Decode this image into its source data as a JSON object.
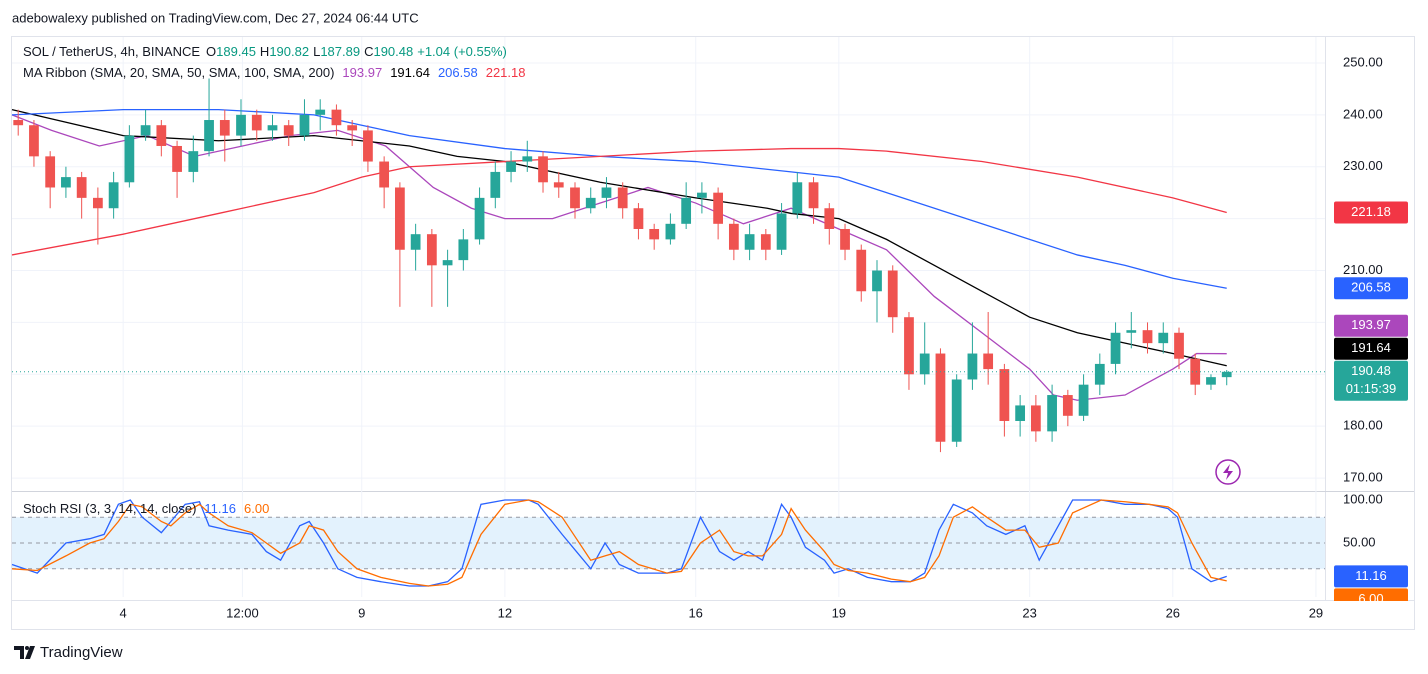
{
  "header": {
    "published": "adebowalexy published on TradingView.com, Dec 27, 2024 06:44 UTC"
  },
  "footer": {
    "brand": "TradingView"
  },
  "chart_data": {
    "type": "candlestick",
    "symbol": "SOL / TetherUS, 4h, BINANCE",
    "ohlc_labels": [
      "O",
      "H",
      "L",
      "C"
    ],
    "change": "+1.04 (+0.55%)",
    "ribbon_label": "MA Ribbon (SMA, 20, SMA, 50, SMA, 100, SMA, 200)",
    "countdown": "01:15:39",
    "up_color": "#26a69a",
    "down_color": "#ef5350",
    "grid": true,
    "xlim": [
      1.67,
      29.19
    ],
    "xticks": [
      4,
      {
        "value": 6.5,
        "label": "12:00"
      },
      9,
      12,
      16,
      19,
      23,
      26,
      29
    ],
    "ylim": [
      167.7,
      255
    ],
    "yticks": [
      {
        "value": 170,
        "label": "170.00"
      },
      {
        "value": 180,
        "label": "180.00"
      },
      {
        "value": 190,
        "label": "190.00"
      },
      {
        "value": 200,
        "label": "200.00"
      },
      {
        "value": 210,
        "label": "210.00"
      },
      {
        "value": 220,
        "label": "220.00"
      },
      {
        "value": 230,
        "label": "230.00"
      },
      {
        "value": 240,
        "label": "240.00"
      },
      {
        "value": 250,
        "label": "250.00"
      }
    ],
    "x": [
      1.8,
      2.13,
      2.47,
      2.8,
      3.13,
      3.47,
      3.8,
      4.13,
      4.47,
      4.8,
      5.13,
      5.47,
      5.8,
      6.13,
      6.47,
      6.8,
      7.13,
      7.47,
      7.8,
      8.13,
      8.47,
      8.8,
      9.13,
      9.47,
      9.8,
      10.13,
      10.47,
      10.8,
      11.13,
      11.47,
      11.8,
      12.13,
      12.47,
      12.8,
      13.13,
      13.47,
      13.8,
      14.13,
      14.47,
      14.8,
      15.13,
      15.47,
      15.8,
      16.13,
      16.47,
      16.8,
      17.13,
      17.47,
      17.8,
      18.13,
      18.47,
      18.8,
      19.13,
      19.47,
      19.8,
      20.13,
      20.47,
      20.8,
      21.13,
      21.47,
      21.8,
      22.13,
      22.47,
      22.8,
      23.13,
      23.47,
      23.8,
      24.13,
      24.47,
      24.8,
      25.13,
      25.47,
      25.8,
      26.13,
      26.47,
      26.8,
      27.13
    ],
    "open": [
      239,
      238,
      232,
      226,
      228,
      224,
      222,
      227,
      236,
      238,
      234,
      229,
      233,
      239,
      236,
      240,
      237,
      238,
      236,
      240,
      241,
      238,
      237,
      231,
      226,
      214,
      217,
      211,
      212,
      216,
      224,
      229,
      231,
      232,
      227,
      226,
      222,
      224,
      226,
      222,
      218,
      216,
      219,
      224,
      225,
      219,
      214,
      217,
      214,
      221,
      227,
      222,
      218,
      214,
      206,
      210,
      201,
      190,
      194,
      177,
      189,
      194,
      191,
      181,
      184,
      179,
      186,
      182,
      188,
      192,
      198,
      198.5,
      196,
      198,
      193,
      188,
      189.45
    ],
    "high": [
      241,
      239,
      233,
      230,
      229,
      226,
      229,
      238,
      241,
      239,
      235,
      236,
      247,
      241,
      243,
      241,
      240,
      239,
      243,
      243,
      242,
      239,
      238,
      232,
      227,
      219,
      218,
      214,
      218,
      226,
      231,
      233,
      235,
      233,
      229,
      227,
      226,
      228,
      227,
      223,
      219,
      221,
      227,
      227,
      226,
      220,
      219,
      218,
      223,
      229,
      228,
      223,
      219,
      215,
      212,
      211,
      202,
      200,
      195,
      190,
      200,
      202,
      192,
      186,
      186,
      188,
      187,
      190,
      194,
      200,
      202,
      200,
      200,
      199,
      194,
      190,
      190.82
    ],
    "low": [
      236,
      230,
      222,
      224,
      220,
      215,
      220,
      226,
      235,
      232,
      224,
      227,
      232,
      231,
      234,
      235,
      235,
      234,
      235,
      237,
      236,
      234,
      229,
      222,
      203,
      210,
      203,
      203,
      210,
      215,
      222,
      227,
      229,
      225,
      224,
      220,
      221,
      222,
      220,
      216,
      214,
      215,
      218,
      221,
      216,
      212,
      212,
      212,
      213,
      220,
      219,
      215,
      212,
      204,
      200,
      198,
      187,
      188,
      175,
      176,
      187,
      188,
      178,
      178,
      177,
      177,
      180,
      181,
      186,
      190,
      195,
      194,
      194,
      191,
      186,
      187,
      187.89
    ],
    "close": [
      238,
      232,
      226,
      228,
      224,
      222,
      227,
      236,
      238,
      234,
      229,
      233,
      239,
      236,
      240,
      237,
      238,
      236,
      240,
      241,
      238,
      237,
      231,
      226,
      214,
      217,
      211,
      212,
      216,
      224,
      229,
      231,
      232,
      227,
      226,
      222,
      224,
      226,
      222,
      218,
      216,
      219,
      224,
      225,
      219,
      214,
      217,
      214,
      221,
      227,
      222,
      218,
      214,
      206,
      210,
      201,
      190,
      194,
      177,
      189,
      194,
      191,
      181,
      184,
      179,
      186,
      182,
      188,
      192,
      198,
      198.5,
      196,
      198,
      193,
      188,
      189.45,
      190.48
    ],
    "series": [
      {
        "color": "#ab47bc",
        "x": [
          1.67,
          2.5,
          3.5,
          4.5,
          5.5,
          6.5,
          7.5,
          8.5,
          9.5,
          10.5,
          11.3,
          12,
          13,
          14,
          15,
          16,
          17,
          18,
          19,
          20,
          21,
          22,
          23,
          23.5,
          24,
          25,
          26,
          26.5,
          27.13
        ],
        "values": [
          240,
          237,
          234,
          236,
          232,
          234,
          236,
          237,
          234,
          226,
          222,
          220,
          220,
          223,
          226,
          223,
          219,
          222,
          218,
          214,
          205,
          198,
          191,
          186,
          185,
          186,
          191,
          194,
          193.97
        ]
      },
      {
        "color": "#000000",
        "x": [
          1.67,
          4,
          6,
          8,
          10,
          11,
          12,
          14,
          16,
          17.5,
          18,
          19,
          20,
          21,
          22,
          23,
          24,
          25,
          26,
          27.13
        ],
        "values": [
          241,
          236,
          235,
          236,
          234,
          232,
          231,
          227,
          224,
          222,
          221,
          220,
          216,
          211,
          206,
          201,
          198,
          196,
          194,
          191.64
        ]
      },
      {
        "color": "#2962ff",
        "x": [
          1.67,
          4,
          6,
          8,
          9,
          10,
          12,
          14,
          16,
          18,
          19,
          20,
          22,
          24,
          25,
          26,
          27.13
        ],
        "values": [
          240,
          241,
          241,
          240,
          238,
          236,
          233.5,
          232,
          231,
          229,
          228,
          225,
          219,
          213,
          211,
          208.5,
          206.58
        ]
      },
      {
        "color": "#f23645",
        "x": [
          1.67,
          4,
          6,
          8,
          9,
          10,
          12,
          14,
          16,
          18,
          19,
          20,
          22,
          24,
          26,
          27.13
        ],
        "values": [
          213,
          217,
          221,
          225,
          228,
          230,
          231,
          232,
          233,
          233.5,
          233.5,
          233,
          231,
          228,
          224,
          221.18
        ]
      }
    ],
    "stoch": {
      "label": "Stoch RSI (3, 3, 14, 14, close)",
      "ylim": [
        -12.8,
        109.3
      ],
      "yticks": [
        {
          "value": 50,
          "label": "50.00"
        },
        {
          "value": 100,
          "label": "100.00"
        }
      ],
      "bands": [
        80,
        50,
        20
      ],
      "band_color": "#e3f2fd",
      "x": [
        1.67,
        2.2,
        2.8,
        3.3,
        3.6,
        3.9,
        4.15,
        4.4,
        4.8,
        5.0,
        5.3,
        5.6,
        5.8,
        6.2,
        6.7,
        7.0,
        7.3,
        7.7,
        7.9,
        8.2,
        8.5,
        8.9,
        9.4,
        10.0,
        10.4,
        10.8,
        11.1,
        11.5,
        12.0,
        12.5,
        12.7,
        13.2,
        13.5,
        13.8,
        14.1,
        14.4,
        14.8,
        15.4,
        15.7,
        16.1,
        16.5,
        16.8,
        17.1,
        17.4,
        17.8,
        18.0,
        18.3,
        18.7,
        18.9,
        19.2,
        19.6,
        20.1,
        20.5,
        20.8,
        21.1,
        21.4,
        21.8,
        22.1,
        22.5,
        22.9,
        23.2,
        23.6,
        23.9,
        24.5,
        25.0,
        25.5,
        25.9,
        26.1,
        26.4,
        26.8,
        27.13
      ],
      "series": [
        {
          "color": "#2962ff",
          "values": [
            25,
            15,
            50,
            55,
            60,
            95,
            100,
            80,
            62,
            75,
            95,
            98,
            70,
            65,
            60,
            40,
            30,
            70,
            75,
            50,
            20,
            10,
            5,
            0,
            0,
            5,
            20,
            95,
            100,
            100,
            95,
            60,
            40,
            20,
            50,
            25,
            15,
            15,
            20,
            80,
            40,
            30,
            40,
            30,
            95,
            80,
            45,
            30,
            15,
            20,
            10,
            5,
            5,
            15,
            65,
            95,
            85,
            70,
            60,
            70,
            30,
            70,
            100,
            100,
            95,
            95,
            90,
            80,
            20,
            5,
            11.16
          ]
        },
        {
          "color": "#ff6d00",
          "value_label": "6.00",
          "values": [
            20,
            18,
            35,
            50,
            55,
            75,
            95,
            92,
            75,
            70,
            85,
            95,
            85,
            70,
            62,
            50,
            38,
            50,
            70,
            65,
            40,
            20,
            10,
            3,
            0,
            2,
            10,
            60,
            95,
            100,
            98,
            80,
            55,
            30,
            35,
            40,
            25,
            15,
            17,
            50,
            65,
            40,
            35,
            35,
            60,
            90,
            65,
            40,
            25,
            18,
            15,
            8,
            5,
            10,
            35,
            80,
            92,
            80,
            65,
            65,
            45,
            50,
            85,
            100,
            98,
            95,
            92,
            85,
            50,
            10,
            6
          ]
        }
      ]
    }
  }
}
